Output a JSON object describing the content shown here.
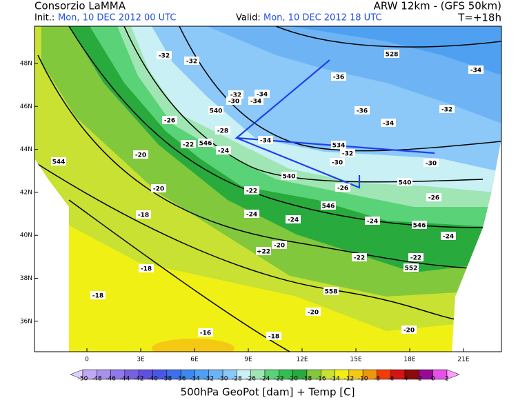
{
  "header": {
    "title": "Consorzio LaMMA",
    "model": "ARW 12km - (GFS 50km)",
    "init_label": "Init.:",
    "init_time": "Mon, 10 DEC 2012 00 UTC",
    "valid_label": "Valid:",
    "valid_time": "Mon, 10 DEC 2012 18 UTC",
    "lead_time": "T=+18h"
  },
  "map": {
    "lat_labels": [
      "48N",
      "46N",
      "44N",
      "42N",
      "40N",
      "38N",
      "36N"
    ],
    "lon_labels": [
      "0",
      "3E",
      "6E",
      "9E",
      "12E",
      "15E",
      "18E",
      "21E"
    ],
    "contour_labels": [
      "-32",
      "-32",
      "-32",
      "-30",
      "-34",
      "-34",
      "540",
      "-26",
      "-28",
      "546",
      "-22",
      "-24",
      "-34",
      "534",
      "-32",
      "-36",
      "528",
      "-34",
      "-36",
      "-34",
      "-32",
      "-30",
      "-30",
      "540",
      "-26",
      "540",
      "-26",
      "544",
      "-20",
      "-20",
      "-22",
      "546",
      "-24",
      "-24",
      "-24",
      "546",
      "-24",
      "-18",
      "-20",
      "+22",
      "-22",
      "-22",
      "552",
      "-18",
      "-18",
      "558",
      "-20",
      "-16",
      "-18",
      "-20"
    ]
  },
  "colorbar": {
    "labels": [
      -50,
      -48,
      -46,
      -44,
      -42,
      -40,
      -38,
      -36,
      -34,
      -32,
      -30,
      -28,
      -26,
      -24,
      -22,
      -20,
      -18,
      -16,
      -14,
      -12,
      -10,
      -8,
      -6,
      -4,
      -2,
      0,
      2
    ],
    "colors": [
      "#e0d0ff",
      "#c0a8f5",
      "#a890ee",
      "#9078e8",
      "#7860e0",
      "#6050e0",
      "#4858e6",
      "#3c70ec",
      "#3c88f0",
      "#50a0f2",
      "#6eb4f5",
      "#8cc8f8",
      "#c8f0f5",
      "#a0e6b4",
      "#5ad278",
      "#32be50",
      "#28aa3c",
      "#82c83c",
      "#c8e132",
      "#f0f014",
      "#f5c814",
      "#f0960a",
      "#f03c0a",
      "#d21414",
      "#8c0a0a",
      "#960a96",
      "#e650e6",
      "#ffa0ff"
    ]
  },
  "footer": "500hPa GeoPot [dam] + Temp [C]"
}
